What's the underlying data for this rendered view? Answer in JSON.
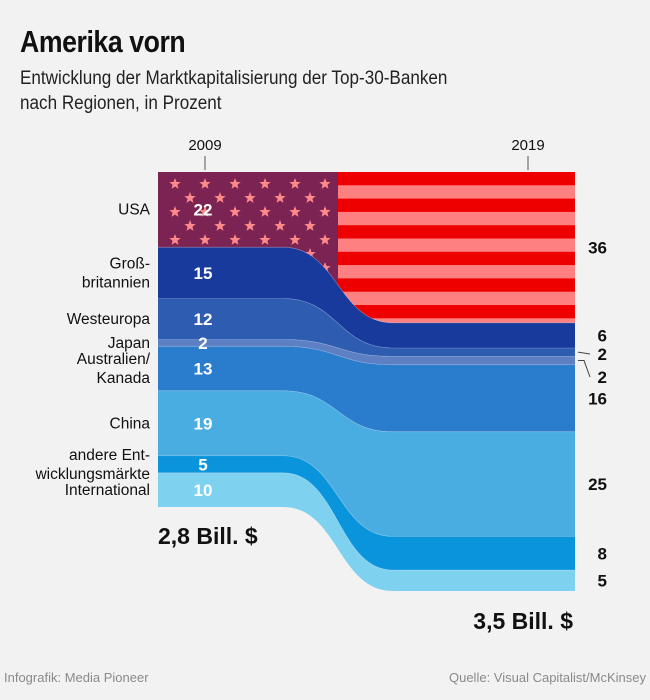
{
  "title": "Amerika vorn",
  "subtitle_line1": "Entwicklung der Marktkapitalisierung der Top-30-Banken",
  "subtitle_line2": "nach Regionen, in Prozent",
  "footer_left": "Infografik: Media Pioneer",
  "footer_right": "Quelle: Visual Capitalist/McKinsey",
  "colors": {
    "usa_flag_field": "#7b2352",
    "usa_flag_red": "#ee0000",
    "usa_flag_stripe": "#ff8080",
    "usa_star": "#ff8a8a",
    "gb": "#183a9c",
    "westeuropa": "#2e5cb0",
    "japan": "#5d7fc4",
    "australien": "#2a7ccc",
    "china": "#4aade2",
    "andere": "#0a94dc",
    "international": "#7ed2f0"
  },
  "chart_data": {
    "type": "area",
    "title": "Amerika vorn",
    "subtitle": "Entwicklung der Marktkapitalisierung der Top-30-Banken nach Regionen, in Prozent",
    "x": [
      "2009",
      "2019"
    ],
    "total_2009": "2,8 Bill. $",
    "total_2019": "3,5 Bill. $",
    "series": [
      {
        "name": "USA",
        "label": "USA",
        "values": [
          22,
          36
        ]
      },
      {
        "name": "Großbritannien",
        "label_lines": [
          "Groß-",
          "britannien"
        ],
        "values": [
          15,
          6
        ]
      },
      {
        "name": "Westeuropa",
        "label": "Westeuropa",
        "values": [
          12,
          2
        ]
      },
      {
        "name": "Japan",
        "label": "Japan",
        "values": [
          2,
          2
        ]
      },
      {
        "name": "Australien/Kanada",
        "label_lines": [
          "Australien/",
          "Kanada"
        ],
        "values": [
          13,
          16
        ]
      },
      {
        "name": "China",
        "label": "China",
        "values": [
          19,
          25
        ]
      },
      {
        "name": "andere Entwicklungsmärkte",
        "label_lines": [
          "andere Ent-",
          "wicklungsmärkte"
        ],
        "values": [
          5,
          8
        ]
      },
      {
        "name": "International",
        "label": "International",
        "values": [
          10,
          5
        ]
      }
    ]
  }
}
